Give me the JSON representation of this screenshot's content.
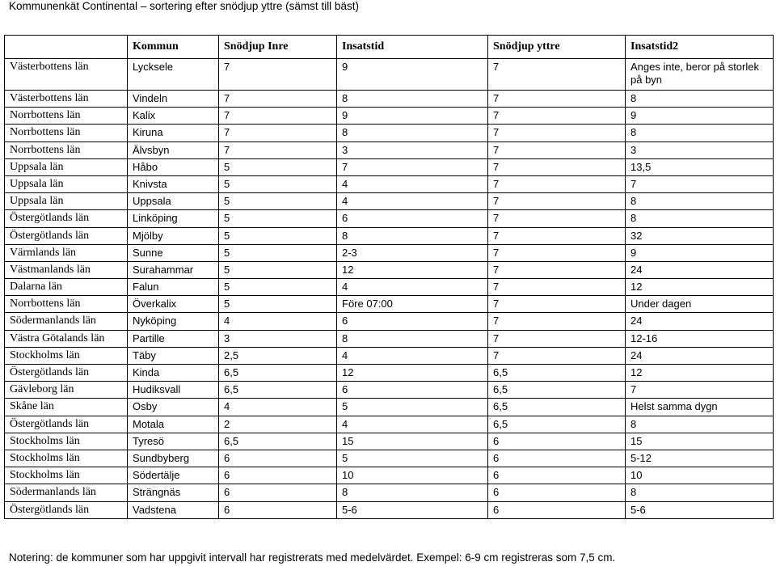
{
  "title": "Kommunenkät Continental – sortering efter snödjup yttre (sämst till bäst)",
  "table": {
    "headers": [
      "",
      "Kommun",
      "Snödjup Inre",
      "Insatstid",
      "Snödjup yttre",
      "Insatstid2"
    ],
    "rows": [
      [
        "Västerbottens län",
        "Lycksele",
        "7",
        "9",
        "7",
        "Anges inte, beror på storlek på byn"
      ],
      [
        "Västerbottens län",
        "Vindeln",
        "7",
        "8",
        "7",
        "8"
      ],
      [
        "Norrbottens län",
        "Kalix",
        "7",
        "9",
        "7",
        "9"
      ],
      [
        "Norrbottens län",
        "Kiruna",
        "7",
        "8",
        "7",
        "8"
      ],
      [
        "Norrbottens län",
        "Älvsbyn",
        "7",
        "3",
        "7",
        "3"
      ],
      [
        "Uppsala län",
        "Håbo",
        "5",
        "7",
        "7",
        "13,5"
      ],
      [
        "Uppsala län",
        "Knivsta",
        "5",
        "4",
        "7",
        "7"
      ],
      [
        "Uppsala län",
        "Uppsala",
        "5",
        "4",
        "7",
        "8"
      ],
      [
        "Östergötlands län",
        "Linköping",
        "5",
        "6",
        "7",
        "8"
      ],
      [
        "Östergötlands län",
        "Mjölby",
        "5",
        "8",
        "7",
        "32"
      ],
      [
        "Värmlands län",
        "Sunne",
        "5",
        "2-3",
        "7",
        "9"
      ],
      [
        "Västmanlands län",
        "Surahammar",
        "5",
        "12",
        "7",
        "24"
      ],
      [
        "Dalarna län",
        "Falun",
        "5",
        "4",
        "7",
        "12"
      ],
      [
        "Norrbottens län",
        "Överkalix",
        "5",
        "Före 07:00",
        "7",
        "Under dagen"
      ],
      [
        "Södermanlands län",
        "Nyköping",
        "4",
        "6",
        "7",
        "24"
      ],
      [
        "Västra Götalands län",
        "Partille",
        "3",
        "8",
        "7",
        "12-16"
      ],
      [
        "Stockholms län",
        "Täby",
        "2,5",
        "4",
        "7",
        "24"
      ],
      [
        "Östergötlands län",
        "Kinda",
        "6,5",
        "12",
        "6,5",
        "12"
      ],
      [
        "Gävleborg län",
        "Hudiksvall",
        "6,5",
        "6",
        "6,5",
        "7"
      ],
      [
        "Skåne län",
        "Osby",
        "4",
        "5",
        "6,5",
        "Helst samma dygn"
      ],
      [
        "Östergötlands län",
        "Motala",
        "2",
        "4",
        "6,5",
        "8"
      ],
      [
        "Stockholms län",
        "Tyresö",
        "6,5",
        "15",
        "6",
        "15"
      ],
      [
        "Stockholms län",
        "Sundbyberg",
        "6",
        "5",
        "6",
        "5-12"
      ],
      [
        "Stockholms län",
        "Södertälje",
        "6",
        "10",
        "6",
        "10"
      ],
      [
        "Södermanlands län",
        "Strängnäs",
        "6",
        "8",
        "6",
        "8"
      ],
      [
        "Östergötlands län",
        "Vadstena",
        "6",
        "5-6",
        "6",
        "5-6"
      ]
    ]
  },
  "note": "Notering: de kommuner som har uppgivit intervall har registrerats med medelvärdet. Exempel: 6-9 cm registreras som 7,5 cm."
}
